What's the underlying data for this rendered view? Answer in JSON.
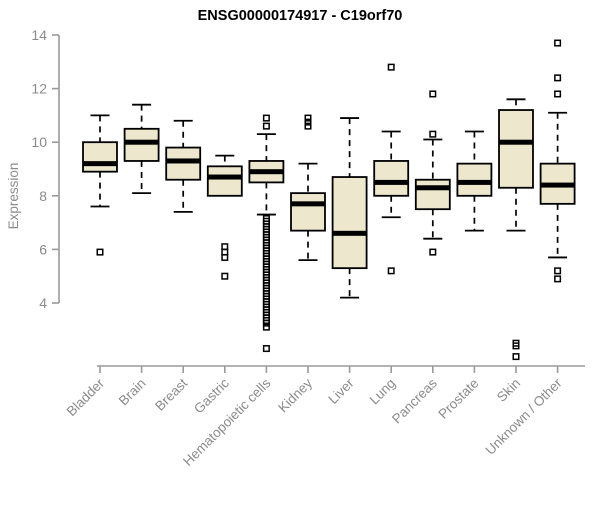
{
  "chart_data": {
    "type": "boxplot",
    "title": "ENSG00000174917 - C19orf70",
    "ylabel": "Expression",
    "xlabel": "",
    "ylim": [
      4,
      14
    ],
    "yticks": [
      4,
      6,
      8,
      10,
      12,
      14
    ],
    "grid": false,
    "legend_position": "none",
    "colors": {
      "box_fill": "#EDE7CD",
      "box_border": "#000000",
      "median": "#000000",
      "whisker": "#000000",
      "outlier": "#000000",
      "axis_line": "#9A9A9A",
      "tick_label": "#8B8B8B",
      "title": "#000000",
      "background": "#FFFFFF"
    },
    "categories": [
      "Bladder",
      "Brain",
      "Breast",
      "Gastric",
      "Hematopoietic cells",
      "Kidney",
      "Liver",
      "Lung",
      "Pancreas",
      "Prostate",
      "Skin",
      "Unknown / Other"
    ],
    "boxes": [
      {
        "label": "Bladder",
        "whisker_low": 7.6,
        "q1": 8.9,
        "median": 9.2,
        "q3": 10.0,
        "whisker_high": 11.0,
        "outliers": [
          5.9
        ]
      },
      {
        "label": "Brain",
        "whisker_low": 8.1,
        "q1": 9.3,
        "median": 10.0,
        "q3": 10.5,
        "whisker_high": 11.4,
        "outliers": []
      },
      {
        "label": "Breast",
        "whisker_low": 7.4,
        "q1": 8.6,
        "median": 9.3,
        "q3": 9.8,
        "whisker_high": 10.8,
        "outliers": []
      },
      {
        "label": "Gastric",
        "whisker_low": 8.0,
        "q1": 8.0,
        "median": 8.7,
        "q3": 9.1,
        "whisker_high": 9.5,
        "outliers": [
          6.1,
          5.9,
          5.7,
          5.0
        ]
      },
      {
        "label": "Hematopoietic cells",
        "whisker_low": 7.3,
        "q1": 8.5,
        "median": 8.9,
        "q3": 9.3,
        "whisker_high": 10.3,
        "outliers": [
          10.9,
          10.6,
          7.15,
          7.05,
          6.95,
          6.85,
          6.75,
          6.65,
          6.55,
          6.45,
          6.35,
          6.25,
          6.15,
          6.05,
          5.95,
          5.85,
          5.75,
          5.65,
          5.55,
          5.45,
          5.35,
          5.25,
          5.15,
          5.05,
          4.95,
          4.85,
          4.75,
          4.65,
          4.55,
          4.45,
          4.35,
          4.25,
          4.15,
          4.05,
          3.95,
          3.85,
          3.75,
          3.65,
          3.55,
          3.45,
          3.35,
          3.25,
          3.1,
          2.3
        ]
      },
      {
        "label": "Kidney",
        "whisker_low": 5.6,
        "q1": 6.7,
        "median": 7.7,
        "q3": 8.1,
        "whisker_high": 9.2,
        "outliers": [
          10.9,
          10.75,
          10.6
        ]
      },
      {
        "label": "Liver",
        "whisker_low": 4.2,
        "q1": 5.3,
        "median": 6.6,
        "q3": 8.7,
        "whisker_high": 10.9,
        "outliers": []
      },
      {
        "label": "Lung",
        "whisker_low": 7.2,
        "q1": 8.0,
        "median": 8.5,
        "q3": 9.3,
        "whisker_high": 10.4,
        "outliers": [
          12.8,
          5.2
        ]
      },
      {
        "label": "Pancreas",
        "whisker_low": 6.4,
        "q1": 7.5,
        "median": 8.3,
        "q3": 8.6,
        "whisker_high": 10.1,
        "outliers": [
          11.8,
          10.3,
          5.9
        ]
      },
      {
        "label": "Prostate",
        "whisker_low": 6.7,
        "q1": 8.0,
        "median": 8.5,
        "q3": 9.2,
        "whisker_high": 10.4,
        "outliers": []
      },
      {
        "label": "Skin",
        "whisker_low": 6.7,
        "q1": 8.3,
        "median": 10.0,
        "q3": 11.2,
        "whisker_high": 11.6,
        "outliers": [
          2.5,
          2.4,
          2.0
        ]
      },
      {
        "label": "Unknown / Other",
        "whisker_low": 5.7,
        "q1": 7.7,
        "median": 8.4,
        "q3": 9.2,
        "whisker_high": 11.1,
        "outliers": [
          13.7,
          12.4,
          11.8,
          5.2,
          4.9
        ]
      }
    ]
  }
}
